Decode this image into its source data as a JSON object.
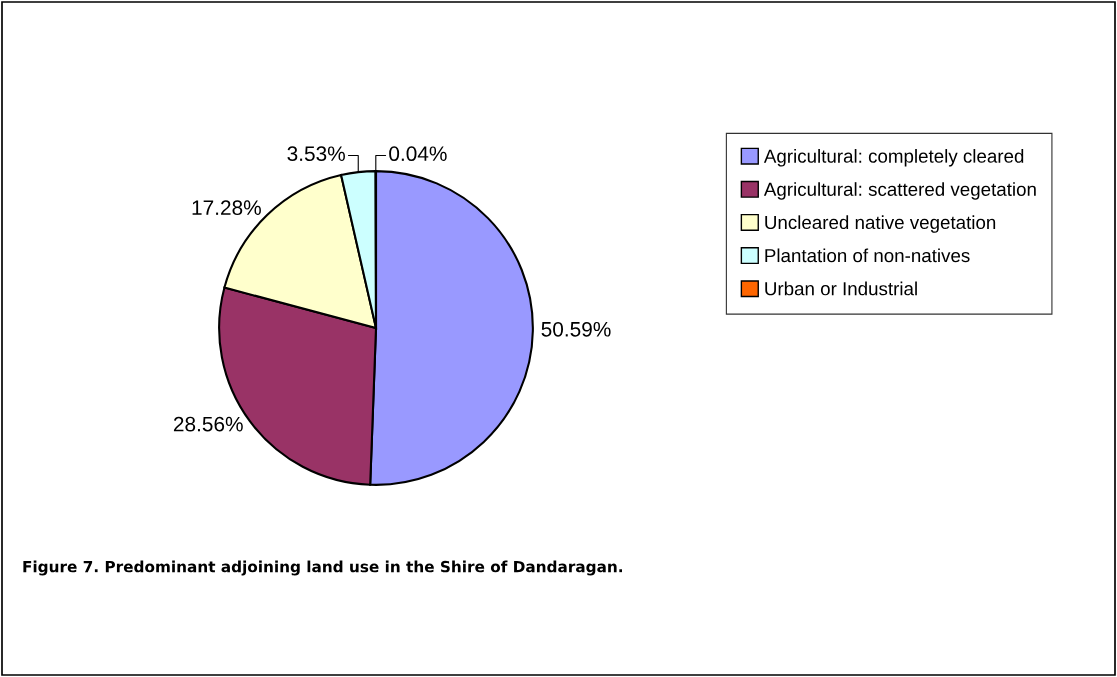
{
  "chart_data": {
    "type": "pie",
    "categories": [
      "Agricultural: completely cleared",
      "Agricultural: scattered vegetation",
      "Uncleared native vegetation",
      "Plantation of non-natives",
      "Urban or Industrial"
    ],
    "values": [
      50.59,
      28.56,
      17.28,
      3.53,
      0.04
    ],
    "colors": [
      "#9999ff",
      "#993366",
      "#ffffcc",
      "#ccffff",
      "#ff6600"
    ],
    "value_labels": [
      "50.59%",
      "28.56%",
      "17.28%",
      "3.53%",
      "0.04%"
    ],
    "legend": "right",
    "annotations": [
      "Figure 7. Predominant adjoining land use in the Shire of Dandaragan."
    ]
  }
}
